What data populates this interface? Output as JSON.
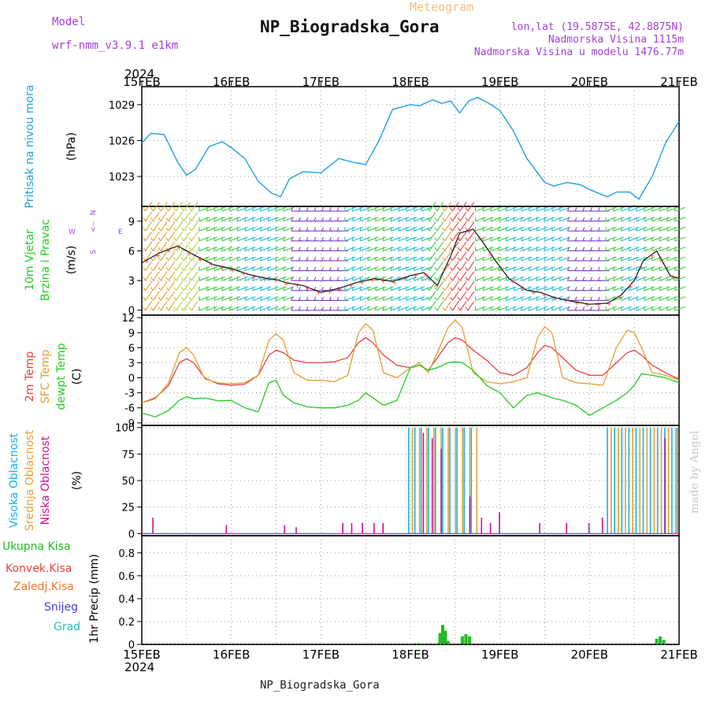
{
  "header": {
    "model_label": "Model",
    "model_name": "wrf-nmm_v3.9.1  e1km",
    "station": "NP_Biogradska_Gora",
    "meteogram": "Meteogram",
    "lonlat": "lon,lat (19.5875E, 42.8875N)",
    "altitude": "Nadmorska Visina 1115m",
    "model_altitude": "Nadmorska Visina u modelu 1476.77m",
    "year": "2024",
    "footer_station": "NP_Biogradska_Gora",
    "credit": "made by Angel"
  },
  "colors": {
    "pressure": "#1ea0e6",
    "temp2m": "#e84040",
    "sfc": "#e0a030",
    "dewpt": "#22cc22",
    "high_cloud": "#18b0e8",
    "mid_cloud": "#e8a030",
    "low_cloud": "#cc1090",
    "total_precip": "#22bb22",
    "conv_precip": "#e84040",
    "frozen_precip": "#f07830",
    "snow": "#4040e0",
    "hail": "#20c0c0",
    "purple": "#a040d8"
  },
  "chart_data": [
    {
      "type": "line",
      "name": "pressure",
      "ylabels": [
        "Pritisak na nivou mora",
        "(hPa)"
      ],
      "x_ticks": [
        "15FEB",
        "16FEB",
        "17FEB",
        "18FEB",
        "19FEB",
        "20FEB",
        "21FEB"
      ],
      "yticks": [
        1023,
        1026,
        1029
      ],
      "ylim": [
        1020.5,
        1030.5
      ],
      "x_days": [
        0,
        0.1,
        0.25,
        0.4,
        0.5,
        0.6,
        0.75,
        0.9,
        1.0,
        1.15,
        1.3,
        1.45,
        1.55,
        1.65,
        1.8,
        2.0,
        2.2,
        2.35,
        2.5,
        2.65,
        2.8,
        3.0,
        3.1,
        3.25,
        3.35,
        3.45,
        3.55,
        3.65,
        3.75,
        3.9,
        4.0,
        4.15,
        4.3,
        4.5,
        4.6,
        4.75,
        4.9,
        5.0,
        5.2,
        5.3,
        5.45,
        5.55,
        5.7,
        5.85,
        6.0
      ],
      "values": [
        1025.8,
        1026.6,
        1026.5,
        1024.2,
        1023.1,
        1023.6,
        1025.5,
        1025.9,
        1025.4,
        1024.5,
        1022.6,
        1021.6,
        1021.3,
        1022.8,
        1023.4,
        1023.3,
        1024.5,
        1024.2,
        1024.0,
        1026.0,
        1028.6,
        1029.0,
        1028.9,
        1029.4,
        1029.1,
        1029.3,
        1028.3,
        1029.3,
        1029.6,
        1029.0,
        1028.5,
        1026.8,
        1024.5,
        1022.5,
        1022.2,
        1022.5,
        1022.3,
        1021.9,
        1021.3,
        1021.7,
        1021.7,
        1021.1,
        1023.0,
        1025.8,
        1027.6
      ],
      "grid": true
    },
    {
      "type": "line",
      "name": "wind",
      "ylabels": [
        "10m Vjetar",
        "Brzina i Pravac",
        "(m/s)"
      ],
      "compass": [
        "N",
        "E",
        "S",
        "W"
      ],
      "yticks": [
        0,
        3,
        6,
        9
      ],
      "ylim": [
        -0.5,
        10.5
      ],
      "x_days": [
        0,
        0.2,
        0.4,
        0.6,
        0.8,
        1.0,
        1.2,
        1.4,
        1.5,
        1.6,
        1.8,
        2.0,
        2.2,
        2.4,
        2.6,
        2.8,
        3.0,
        3.15,
        3.3,
        3.45,
        3.55,
        3.7,
        3.8,
        3.95,
        4.1,
        4.3,
        4.45,
        4.6,
        4.8,
        5.0,
        5.2,
        5.35,
        5.5,
        5.6,
        5.75,
        5.9,
        6.0
      ],
      "speed": [
        4.8,
        5.8,
        6.5,
        5.5,
        4.6,
        4.2,
        3.6,
        3.2,
        3.1,
        2.8,
        2.5,
        1.8,
        2.2,
        2.8,
        3.2,
        2.9,
        3.5,
        3.8,
        2.5,
        5.5,
        7.8,
        8.2,
        7.0,
        5.0,
        3.2,
        2.0,
        1.8,
        1.3,
        0.9,
        0.6,
        0.7,
        1.5,
        3.0,
        5.0,
        6.0,
        3.5,
        3.2
      ],
      "grid": true
    },
    {
      "type": "line",
      "name": "temperature",
      "ylabels": [
        "2m Temp",
        "SFC Temp",
        "dewpt Temp",
        "(C)"
      ],
      "yticks": [
        -9,
        -6,
        -3,
        0,
        3,
        6,
        9,
        12
      ],
      "ylim": [
        -9.5,
        12.5
      ],
      "x_days": [
        0,
        0.15,
        0.3,
        0.42,
        0.5,
        0.58,
        0.7,
        0.85,
        1.0,
        1.15,
        1.3,
        1.42,
        1.5,
        1.58,
        1.7,
        1.85,
        2.0,
        2.15,
        2.3,
        2.42,
        2.5,
        2.58,
        2.7,
        2.85,
        3.0,
        3.1,
        3.2,
        3.3,
        3.42,
        3.5,
        3.58,
        3.7,
        3.85,
        4.0,
        4.15,
        4.3,
        4.42,
        4.5,
        4.58,
        4.7,
        4.85,
        5.0,
        5.15,
        5.3,
        5.42,
        5.5,
        5.58,
        5.7,
        5.85,
        6.0
      ],
      "series": [
        {
          "name": "2m Temp",
          "values": [
            -5.0,
            -4.0,
            -1.5,
            3.0,
            3.8,
            3.0,
            0.0,
            -1.2,
            -1.5,
            -1.3,
            0.5,
            4.5,
            5.5,
            5.0,
            3.5,
            3.0,
            3.0,
            3.2,
            4.0,
            7.0,
            8.0,
            7.0,
            4.5,
            2.5,
            2.0,
            2.5,
            1.5,
            4.0,
            7.0,
            8.0,
            7.5,
            5.5,
            3.5,
            1.0,
            0.5,
            2.0,
            5.0,
            6.5,
            6.0,
            4.0,
            1.5,
            0.5,
            0.5,
            3.0,
            5.0,
            5.5,
            4.5,
            2.5,
            1.0,
            -0.3
          ]
        },
        {
          "name": "SFC Temp",
          "values": [
            -5.0,
            -4.2,
            -1.0,
            5.0,
            6.0,
            4.5,
            -0.2,
            -1.0,
            -1.2,
            -1.0,
            0.5,
            7.5,
            8.8,
            7.5,
            1.0,
            -0.5,
            -0.5,
            -0.8,
            0.5,
            9.0,
            10.8,
            9.5,
            1.0,
            0.0,
            2.0,
            3.0,
            1.0,
            5.0,
            10.0,
            11.5,
            10.0,
            1.0,
            -0.8,
            -1.2,
            -0.8,
            0.0,
            8.0,
            10.2,
            9.0,
            0.0,
            -1.0,
            -1.2,
            -1.5,
            6.0,
            9.5,
            9.0,
            6.0,
            1.0,
            0.5,
            -0.5
          ]
        },
        {
          "name": "dewpt Temp",
          "values": [
            -7.0,
            -7.8,
            -6.5,
            -4.5,
            -3.8,
            -4.2,
            -4.0,
            -4.6,
            -4.5,
            -6.0,
            -6.8,
            -1.0,
            -0.5,
            -3.5,
            -5.0,
            -5.8,
            -6.0,
            -6.0,
            -5.5,
            -4.5,
            -3.0,
            -4.0,
            -5.5,
            -4.5,
            2.0,
            2.5,
            1.5,
            2.0,
            3.0,
            3.2,
            3.0,
            1.5,
            -1.5,
            -3.0,
            -6.0,
            -3.5,
            -3.0,
            -3.5,
            -4.0,
            -4.5,
            -5.5,
            -7.5,
            -6.0,
            -4.5,
            -3.0,
            -1.5,
            0.8,
            0.5,
            0.0,
            -1.0
          ]
        }
      ],
      "grid": true
    },
    {
      "type": "bar",
      "name": "clouds",
      "ylabels": [
        "Visoka Oblacnost",
        "Srednja Oblacnost",
        "Niska Oblacnost",
        "(%)"
      ],
      "yticks": [
        0,
        25,
        50,
        75,
        100
      ],
      "ylim": [
        -2,
        102
      ],
      "series": [
        {
          "name": "Visoka Oblacnost",
          "x_days": [
            2.98,
            3.05,
            3.12,
            3.2,
            3.28,
            3.36,
            3.44,
            3.52,
            3.6,
            3.68,
            5.2,
            5.28,
            5.36,
            5.44,
            5.52,
            5.6,
            5.68,
            5.76,
            5.84,
            5.92,
            5.98
          ],
          "values": [
            100,
            100,
            100,
            100,
            100,
            100,
            100,
            100,
            100,
            100,
            100,
            100,
            100,
            100,
            100,
            100,
            100,
            100,
            100,
            100,
            100
          ]
        },
        {
          "name": "Srednja Oblacnost",
          "x_days": [
            3.0,
            3.08,
            3.16,
            3.24,
            3.32,
            3.4,
            3.48,
            3.56,
            3.64,
            3.72,
            5.22,
            5.3,
            5.38,
            5.46,
            5.54,
            5.62,
            5.7,
            5.78,
            5.86,
            5.94
          ],
          "values": [
            100,
            100,
            100,
            100,
            100,
            100,
            100,
            100,
            100,
            100,
            100,
            100,
            100,
            100,
            100,
            100,
            100,
            100,
            100,
            100
          ]
        },
        {
          "name": "Niska Oblacnost",
          "x_days": [
            0.08,
            0.9,
            1.55,
            1.68,
            2.2,
            2.3,
            2.42,
            2.55,
            2.65,
            3.1,
            3.2,
            3.3,
            3.62,
            3.75,
            3.85,
            3.95,
            4.4,
            4.7,
            4.95,
            5.1,
            5.8
          ],
          "values": [
            15,
            8,
            8,
            6,
            10,
            10,
            10,
            10,
            10,
            95,
            90,
            80,
            35,
            15,
            10,
            20,
            10,
            10,
            10,
            15,
            90
          ]
        }
      ],
      "grid": true
    },
    {
      "type": "bar",
      "name": "precipitation",
      "ylabels": [
        "Ukupna Kisa",
        "Konvek.Kisa",
        "Zaledj.Kisa",
        "Snijeg",
        "Grad",
        "1hr Precip (mm)"
      ],
      "x_ticks_bottom": [
        "15FEB",
        "16FEB",
        "17FEB",
        "18FEB",
        "19FEB",
        "20FEB",
        "21FEB"
      ],
      "yticks": [
        0,
        0.2,
        0.4,
        0.6,
        0.8
      ],
      "ylim": [
        0,
        0.95
      ],
      "x_days": [
        3.05,
        3.1,
        3.3,
        3.33,
        3.36,
        3.39,
        3.42,
        3.58,
        3.62,
        3.66,
        5.75,
        5.79,
        5.83
      ],
      "values": [
        0.01,
        0.01,
        0.01,
        0.1,
        0.17,
        0.12,
        0.03,
        0.07,
        0.09,
        0.07,
        0.05,
        0.07,
        0.04
      ],
      "grid": true
    }
  ]
}
